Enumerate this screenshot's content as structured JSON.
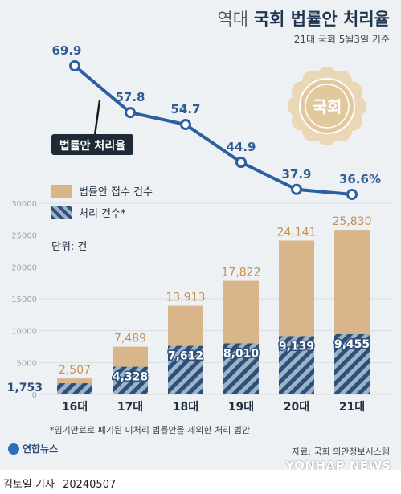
{
  "header": {
    "title_prefix": "역대",
    "title_main": "국회 법률안 처리율",
    "subtitle": "21대 국회 5월3일 기준"
  },
  "seal_text": "국회",
  "colors": {
    "received": "#d9b68a",
    "processed_stripe_a": "#2e4f79",
    "processed_stripe_b": "#9db3c8",
    "rate_line": "#2d5e9f",
    "rate_label": "#325d94",
    "background": "#eef1f4"
  },
  "legend": {
    "received": "법률안 접수 건수",
    "processed": "처리 건수*"
  },
  "unit_label": "단위: 건",
  "footnote": "*임기만료로 폐기된 미처리 법률안을 제외한 처리 법안",
  "source": "자료: 국회 의안정보시스템",
  "logo_text": "연합뉴스",
  "watermark": "YONHAP NEWS",
  "credit": {
    "author": "김토일 기자",
    "date": "20240507"
  },
  "chart_data": {
    "type": "bar",
    "categories": [
      "16대",
      "17대",
      "18대",
      "19대",
      "20대",
      "21대"
    ],
    "ylim": [
      0,
      30000
    ],
    "yticks": [
      0,
      5000,
      10000,
      15000,
      20000,
      25000,
      30000
    ],
    "series": [
      {
        "name": "법률안 접수 건수",
        "values": [
          2507,
          7489,
          13913,
          17822,
          24141,
          25830
        ],
        "labels": [
          "2,507",
          "7,489",
          "13,913",
          "17,822",
          "24,141",
          "25,830"
        ]
      },
      {
        "name": "처리 건수*",
        "values": [
          1753,
          4328,
          7612,
          8010,
          9139,
          9455
        ],
        "labels": [
          "1,753",
          "4,328",
          "7,612",
          "8,010",
          "9,139",
          "9,455"
        ]
      }
    ],
    "rate": {
      "name": "법률안 처리율",
      "values": [
        69.9,
        57.8,
        54.7,
        44.9,
        37.9,
        36.6
      ],
      "labels": [
        "69.9",
        "57.8",
        "54.7",
        "44.9",
        "37.9",
        "36.6%"
      ]
    }
  }
}
